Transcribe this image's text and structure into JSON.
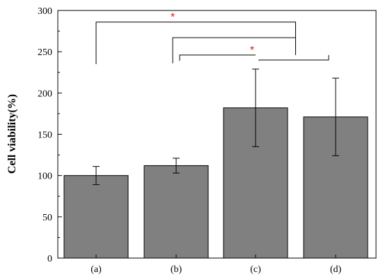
{
  "chart_data": {
    "type": "bar",
    "title": "",
    "xlabel": "",
    "ylabel": "Cell viability(%)",
    "ylim": [
      0,
      300
    ],
    "yticks": [
      0,
      50,
      100,
      150,
      200,
      250,
      300
    ],
    "categories": [
      "(a)",
      "(b)",
      "(c)",
      "(d)"
    ],
    "values": [
      100,
      112,
      182,
      171
    ],
    "errors": [
      11,
      9,
      47,
      47
    ],
    "bar_color": "#808080",
    "significance_marker": "*",
    "significance_color": "#e0191b",
    "significance_brackets": [
      {
        "group": [
          "(a)"
        ],
        "vs": [
          "(c)",
          "(d)"
        ],
        "marker": "*"
      },
      {
        "group": [
          "(b)"
        ],
        "vs": [
          "(c)",
          "(d)"
        ],
        "marker": ""
      },
      {
        "group": [
          "(b)"
        ],
        "vs": [
          "(c)"
        ],
        "marker": "*"
      },
      {
        "group": [
          "(c)"
        ],
        "vs": [
          "(d)"
        ],
        "marker": ""
      }
    ],
    "grid": false,
    "legend": "none"
  }
}
